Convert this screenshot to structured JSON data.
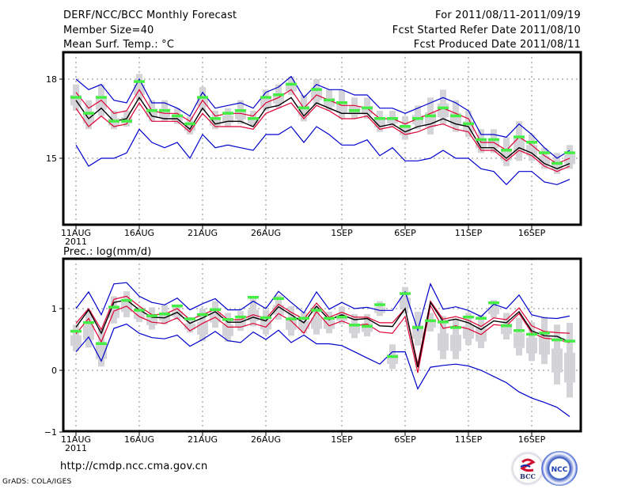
{
  "header": {
    "title": "DERF/NCC/BCC Monthly Forecast",
    "member_size": "Member Size=40",
    "variable_top": "Mean Surf. Temp.: °C",
    "period": "For 2011/08/11-2011/09/19",
    "started": "Fcst Started Refer Date 2011/08/10",
    "produced": "Fcst Produced Date 2011/08/11"
  },
  "footer": {
    "url": "http://cmdp.ncc.cma.gov.cn",
    "credit": "GrADS: COLA/IGES",
    "logos": [
      "BCC",
      "NCC"
    ]
  },
  "colors": {
    "max_min": "#0000cc",
    "spread": "#dd0033",
    "mean": "#000000",
    "obs": "#44ee44",
    "box": "#d4d4d8",
    "grid": "#888888"
  },
  "chart_data": [
    {
      "type": "line",
      "title": "Mean Surf. Temp.: °C",
      "ylabel": "°C",
      "ylim": [
        12.5,
        19.5
      ],
      "yticks": [
        15,
        18
      ],
      "xtick_labels": [
        "11AUG",
        "16AUG",
        "21AUG",
        "26AUG",
        "1SEP",
        "6SEP",
        "11SEP",
        "16SEP"
      ],
      "xtick_day_index": [
        0,
        5,
        10,
        15,
        21,
        26,
        31,
        36
      ],
      "year_label": "2011",
      "grid": true,
      "x_days": 40,
      "series": [
        {
          "name": "max",
          "values": [
            18.0,
            17.6,
            17.8,
            17.2,
            17.1,
            18.0,
            17.1,
            17.1,
            16.9,
            16.6,
            17.5,
            16.9,
            17.0,
            17.1,
            16.9,
            17.5,
            17.7,
            18.1,
            17.3,
            17.8,
            17.6,
            17.6,
            17.4,
            17.4,
            16.9,
            16.9,
            16.7,
            16.9,
            17.1,
            17.3,
            17.1,
            16.8,
            15.9,
            15.9,
            15.8,
            16.3,
            15.9,
            15.4,
            15.0,
            15.3
          ]
        },
        {
          "name": "upper",
          "values": [
            17.5,
            16.9,
            17.2,
            16.7,
            16.8,
            17.6,
            16.8,
            16.7,
            16.7,
            16.4,
            17.2,
            16.6,
            16.7,
            16.7,
            16.6,
            17.1,
            17.3,
            17.6,
            16.9,
            17.4,
            17.2,
            17.0,
            17.0,
            16.9,
            16.5,
            16.5,
            16.3,
            16.5,
            16.7,
            16.9,
            16.7,
            16.5,
            15.6,
            15.6,
            15.3,
            15.8,
            15.5,
            15.1,
            14.8,
            15.0
          ]
        },
        {
          "name": "mean",
          "values": [
            17.2,
            16.5,
            16.9,
            16.4,
            16.5,
            17.3,
            16.6,
            16.5,
            16.5,
            16.1,
            16.9,
            16.3,
            16.4,
            16.4,
            16.2,
            16.9,
            17.0,
            17.3,
            16.6,
            17.1,
            16.9,
            16.7,
            16.7,
            16.7,
            16.2,
            16.3,
            16.0,
            16.2,
            16.3,
            16.5,
            16.3,
            16.2,
            15.4,
            15.4,
            15.0,
            15.4,
            15.2,
            14.8,
            14.6,
            14.8
          ]
        },
        {
          "name": "lower",
          "values": [
            16.9,
            16.2,
            16.6,
            16.2,
            16.3,
            17.1,
            16.4,
            16.4,
            16.4,
            16.0,
            16.7,
            16.2,
            16.2,
            16.2,
            16.1,
            16.7,
            16.9,
            17.1,
            16.5,
            17.0,
            16.8,
            16.5,
            16.5,
            16.6,
            16.1,
            16.2,
            15.9,
            16.0,
            16.2,
            16.3,
            16.1,
            16.0,
            15.3,
            15.3,
            14.9,
            15.3,
            15.1,
            14.7,
            14.5,
            14.7
          ]
        },
        {
          "name": "min",
          "values": [
            15.5,
            14.7,
            15.0,
            15.0,
            15.2,
            16.1,
            15.6,
            15.4,
            15.6,
            15.0,
            15.9,
            15.4,
            15.5,
            15.4,
            15.3,
            15.9,
            15.9,
            16.2,
            15.6,
            16.2,
            15.9,
            15.5,
            15.5,
            15.7,
            15.1,
            15.4,
            14.9,
            14.9,
            15.0,
            15.3,
            15.0,
            15.0,
            14.6,
            14.5,
            14.0,
            14.5,
            14.5,
            14.1,
            14.0,
            14.2
          ]
        },
        {
          "name": "observed",
          "values": [
            17.3,
            16.7,
            17.3,
            16.4,
            16.4,
            17.9,
            16.8,
            16.8,
            16.6,
            16.3,
            17.3,
            16.5,
            16.7,
            16.8,
            16.5,
            17.3,
            17.4,
            17.8,
            16.9,
            17.6,
            17.2,
            17.1,
            16.8,
            16.9,
            16.5,
            16.5,
            16.2,
            16.5,
            16.6,
            16.9,
            16.6,
            16.3,
            15.7,
            15.7,
            15.3,
            15.8,
            15.6,
            15.2,
            14.8,
            15.2
          ]
        },
        {
          "name": "box_top",
          "values": [
            17.8,
            17.2,
            17.8,
            16.8,
            16.8,
            18.2,
            17.2,
            17.2,
            16.9,
            16.6,
            17.7,
            16.8,
            16.9,
            17.2,
            16.8,
            17.6,
            17.8,
            18.1,
            17.4,
            18.0,
            17.6,
            17.6,
            17.3,
            17.3,
            16.8,
            16.8,
            16.6,
            17.0,
            17.3,
            17.6,
            17.2,
            16.8,
            16.1,
            16.1,
            15.8,
            16.4,
            15.9,
            15.4,
            15.2,
            15.5
          ]
        },
        {
          "name": "box_bottom",
          "values": [
            16.8,
            16.1,
            16.6,
            16.1,
            16.2,
            17.2,
            16.4,
            16.4,
            16.3,
            15.9,
            16.8,
            16.1,
            16.2,
            16.3,
            16.2,
            16.8,
            16.9,
            17.4,
            16.4,
            17.0,
            16.8,
            16.5,
            16.5,
            16.5,
            16.0,
            16.2,
            15.7,
            16.1,
            15.9,
            16.3,
            16.0,
            15.8,
            15.2,
            15.2,
            14.7,
            14.9,
            14.9,
            14.6,
            14.4,
            14.6
          ]
        }
      ]
    },
    {
      "type": "line",
      "title": "Prec.: log(mm/d)",
      "ylabel": "log(mm/d)",
      "ylim": [
        -1,
        1.8
      ],
      "yticks": [
        -1,
        0,
        1
      ],
      "xtick_labels": [
        "11AUG",
        "16AUG",
        "21AUG",
        "26AUG",
        "1SEP",
        "6SEP",
        "11SEP",
        "16SEP"
      ],
      "xtick_day_index": [
        0,
        5,
        10,
        15,
        21,
        26,
        31,
        36
      ],
      "year_label": "2011",
      "grid": true,
      "x_days": 40,
      "series": [
        {
          "name": "max",
          "values": [
            1.0,
            1.27,
            0.9,
            1.4,
            1.42,
            1.2,
            1.1,
            1.06,
            1.17,
            0.98,
            1.08,
            1.16,
            0.98,
            0.98,
            1.12,
            1.0,
            1.28,
            1.1,
            0.93,
            1.27,
            0.99,
            1.1,
            1.0,
            1.02,
            0.97,
            0.97,
            1.27,
            0.65,
            1.4,
            0.99,
            1.03,
            0.97,
            0.87,
            1.07,
            1.0,
            1.22,
            0.9,
            0.85,
            0.84,
            0.88
          ]
        },
        {
          "name": "upper",
          "values": [
            0.76,
            1.0,
            0.66,
            1.15,
            1.2,
            1.04,
            0.9,
            0.91,
            1.0,
            0.82,
            0.9,
            0.99,
            0.82,
            0.82,
            0.9,
            0.84,
            1.07,
            0.94,
            0.83,
            1.09,
            0.86,
            0.94,
            0.86,
            0.86,
            0.77,
            0.77,
            1.0,
            0.1,
            1.12,
            0.83,
            0.87,
            0.81,
            0.71,
            0.85,
            0.82,
            1.01,
            0.72,
            0.63,
            0.61,
            0.6
          ]
        },
        {
          "name": "mean",
          "values": [
            0.7,
            0.98,
            0.6,
            1.1,
            1.14,
            0.98,
            0.86,
            0.85,
            0.94,
            0.76,
            0.85,
            0.95,
            0.78,
            0.78,
            0.86,
            0.8,
            1.03,
            0.9,
            0.77,
            1.04,
            0.82,
            0.9,
            0.82,
            0.84,
            0.72,
            0.71,
            1.0,
            0.05,
            1.1,
            0.79,
            0.83,
            0.77,
            0.66,
            0.8,
            0.77,
            0.95,
            0.64,
            0.56,
            0.55,
            0.46
          ]
        },
        {
          "name": "lower",
          "values": [
            0.59,
            0.84,
            0.46,
            0.96,
            1.04,
            0.87,
            0.78,
            0.76,
            0.85,
            0.64,
            0.76,
            0.86,
            0.7,
            0.7,
            0.76,
            0.7,
            0.92,
            0.8,
            0.6,
            0.95,
            0.72,
            0.8,
            0.72,
            0.75,
            0.62,
            0.6,
            0.87,
            -0.04,
            1.05,
            0.68,
            0.72,
            0.67,
            0.58,
            0.74,
            0.72,
            0.92,
            0.61,
            0.52,
            0.5,
            0.45
          ]
        },
        {
          "name": "min",
          "values": [
            0.3,
            0.54,
            0.15,
            0.68,
            0.75,
            0.6,
            0.53,
            0.51,
            0.57,
            0.39,
            0.5,
            0.63,
            0.48,
            0.45,
            0.62,
            0.5,
            0.65,
            0.45,
            0.57,
            0.43,
            0.43,
            0.4,
            0.3,
            0.2,
            0.1,
            0.3,
            0.3,
            -0.3,
            0.05,
            0.08,
            0.1,
            0.07,
            0.0,
            -0.1,
            -0.2,
            -0.35,
            -0.45,
            -0.52,
            -0.6,
            -0.75
          ]
        },
        {
          "name": "observed",
          "values": [
            0.63,
            0.77,
            0.43,
            1.02,
            1.13,
            0.97,
            0.88,
            0.91,
            1.04,
            0.83,
            0.9,
            0.98,
            0.82,
            0.86,
            1.18,
            0.85,
            1.16,
            0.83,
            0.84,
            0.97,
            0.84,
            0.86,
            0.73,
            0.71,
            1.06,
            0.22,
            1.24,
            0.69,
            0.8,
            0.78,
            0.69,
            0.86,
            0.84,
            1.09,
            0.72,
            0.64,
            0.58,
            0.6,
            0.49,
            0.47
          ]
        },
        {
          "name": "box_top",
          "values": [
            0.74,
            0.97,
            0.68,
            1.2,
            1.28,
            1.02,
            1.02,
            1.06,
            1.05,
            0.86,
            1.0,
            1.12,
            0.93,
            0.96,
            1.16,
            0.98,
            1.22,
            1.04,
            0.94,
            1.04,
            0.95,
            1.03,
            0.91,
            0.91,
            1.12,
            0.42,
            1.35,
            0.95,
            0.93,
            0.88,
            0.84,
            0.93,
            0.9,
            1.14,
            0.93,
            0.85,
            0.78,
            0.87,
            0.74,
            0.77
          ]
        },
        {
          "name": "box_bottom",
          "values": [
            0.31,
            0.37,
            0.06,
            0.76,
            0.86,
            0.78,
            0.66,
            0.74,
            0.82,
            0.61,
            0.47,
            0.69,
            0.46,
            0.64,
            0.71,
            0.58,
            0.82,
            0.56,
            0.6,
            0.58,
            0.6,
            0.75,
            0.52,
            0.55,
            0.88,
            0.02,
            0.92,
            0.4,
            0.63,
            0.18,
            0.18,
            0.41,
            0.36,
            0.85,
            0.5,
            0.24,
            0.15,
            0.1,
            -0.23,
            -0.44
          ]
        }
      ]
    }
  ]
}
